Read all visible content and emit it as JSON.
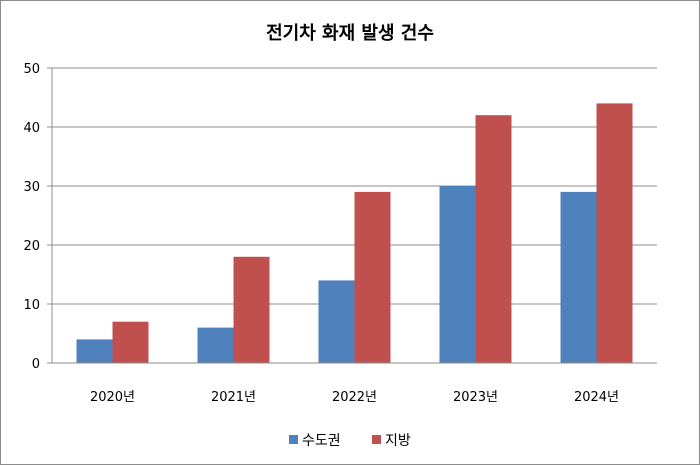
{
  "chart_data": {
    "type": "bar",
    "title": "전기차 화재 발생 건수",
    "categories": [
      "2020년",
      "2021년",
      "2022년",
      "2023년",
      "2024년"
    ],
    "series": [
      {
        "name": "수도권",
        "values": [
          4,
          6,
          14,
          30,
          29
        ],
        "color": "#4f81bd"
      },
      {
        "name": "지방",
        "values": [
          7,
          18,
          29,
          42,
          44
        ],
        "color": "#c0504d"
      }
    ],
    "ylim": [
      0,
      50
    ],
    "yticks": [
      0,
      10,
      20,
      30,
      40,
      50
    ],
    "grid": true,
    "legend_position": "bottom"
  }
}
